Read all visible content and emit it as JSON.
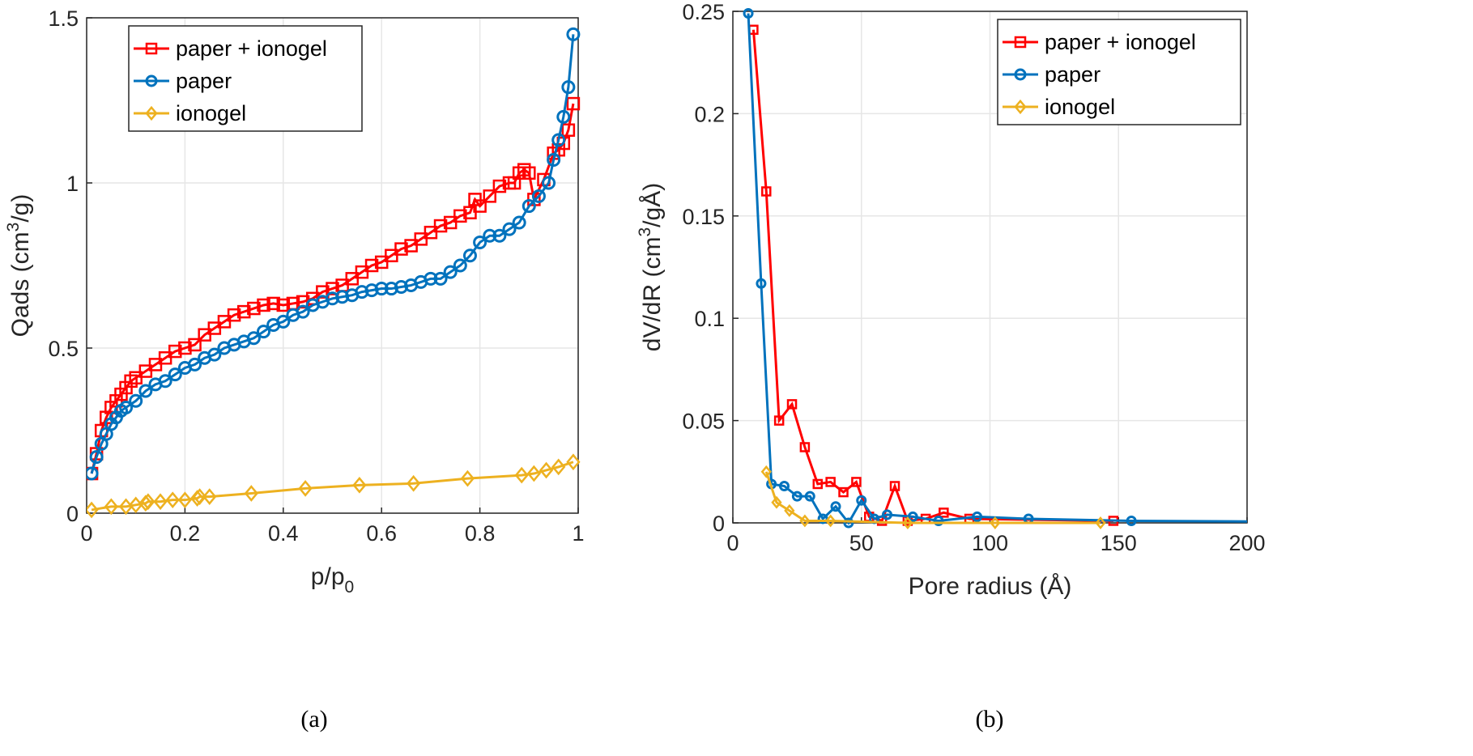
{
  "chart_data": [
    {
      "type": "line",
      "caption": "(a)",
      "xlabel": {
        "main": "p/p",
        "sub": "0"
      },
      "ylabel": {
        "pre": "Qads (cm",
        "sup": "3",
        "post": "/g)"
      },
      "xlim": [
        0,
        1
      ],
      "ylim": [
        0,
        1.5
      ],
      "xticks": [
        "0",
        "0.2",
        "0.4",
        "0.6",
        "0.8",
        "1"
      ],
      "xtick_values": [
        0,
        0.2,
        0.4,
        0.6,
        0.8,
        1
      ],
      "yticks": [
        "0",
        "0.5",
        "1",
        "1.5"
      ],
      "ytick_values": [
        0,
        0.5,
        1,
        1.5
      ],
      "grid": true,
      "legend_position": "top-left",
      "series": [
        {
          "name": "paper + ionogel",
          "color": "#FF0000",
          "marker": "square",
          "x": [
            0.01,
            0.02,
            0.03,
            0.04,
            0.05,
            0.06,
            0.07,
            0.08,
            0.09,
            0.1,
            0.12,
            0.14,
            0.16,
            0.18,
            0.2,
            0.22,
            0.24,
            0.26,
            0.28,
            0.3,
            0.32,
            0.34,
            0.36,
            0.38,
            0.4,
            0.42,
            0.44,
            0.46,
            0.48,
            0.5,
            0.52,
            0.54,
            0.56,
            0.58,
            0.6,
            0.62,
            0.64,
            0.66,
            0.68,
            0.7,
            0.72,
            0.74,
            0.76,
            0.78,
            0.79,
            0.8,
            0.82,
            0.84,
            0.86,
            0.87,
            0.88,
            0.89,
            0.9,
            0.91,
            0.93,
            0.95,
            0.96,
            0.97,
            0.98,
            0.99
          ],
          "y": [
            0.12,
            0.18,
            0.25,
            0.29,
            0.32,
            0.34,
            0.36,
            0.38,
            0.4,
            0.41,
            0.43,
            0.45,
            0.47,
            0.49,
            0.5,
            0.51,
            0.54,
            0.56,
            0.58,
            0.6,
            0.61,
            0.62,
            0.63,
            0.635,
            0.63,
            0.635,
            0.64,
            0.65,
            0.67,
            0.68,
            0.69,
            0.71,
            0.73,
            0.75,
            0.76,
            0.78,
            0.8,
            0.81,
            0.83,
            0.85,
            0.87,
            0.88,
            0.9,
            0.91,
            0.95,
            0.93,
            0.96,
            0.99,
            1.0,
            1.0,
            1.03,
            1.04,
            1.03,
            0.95,
            1.01,
            1.09,
            1.1,
            1.12,
            1.16,
            1.24
          ]
        },
        {
          "name": "paper",
          "color": "#0072BD",
          "marker": "circle",
          "x": [
            0.01,
            0.02,
            0.03,
            0.04,
            0.05,
            0.06,
            0.07,
            0.08,
            0.1,
            0.12,
            0.14,
            0.16,
            0.18,
            0.2,
            0.22,
            0.24,
            0.26,
            0.28,
            0.3,
            0.32,
            0.34,
            0.36,
            0.38,
            0.4,
            0.42,
            0.44,
            0.46,
            0.48,
            0.5,
            0.52,
            0.54,
            0.56,
            0.58,
            0.6,
            0.62,
            0.64,
            0.66,
            0.68,
            0.7,
            0.72,
            0.74,
            0.76,
            0.78,
            0.8,
            0.82,
            0.84,
            0.86,
            0.88,
            0.9,
            0.92,
            0.94,
            0.95,
            0.96,
            0.97,
            0.98,
            0.99
          ],
          "y": [
            0.12,
            0.17,
            0.21,
            0.24,
            0.27,
            0.29,
            0.31,
            0.32,
            0.34,
            0.37,
            0.39,
            0.4,
            0.42,
            0.44,
            0.45,
            0.47,
            0.48,
            0.5,
            0.51,
            0.52,
            0.53,
            0.55,
            0.57,
            0.58,
            0.6,
            0.61,
            0.63,
            0.64,
            0.65,
            0.655,
            0.66,
            0.67,
            0.675,
            0.68,
            0.68,
            0.685,
            0.69,
            0.7,
            0.71,
            0.71,
            0.73,
            0.75,
            0.78,
            0.82,
            0.84,
            0.84,
            0.86,
            0.88,
            0.93,
            0.96,
            1.0,
            1.07,
            1.13,
            1.2,
            1.29,
            1.45
          ]
        },
        {
          "name": "ionogel",
          "color": "#EDB120",
          "marker": "diamond",
          "x": [
            0.01,
            0.05,
            0.08,
            0.1,
            0.12,
            0.125,
            0.15,
            0.175,
            0.2,
            0.225,
            0.23,
            0.25,
            0.335,
            0.445,
            0.555,
            0.665,
            0.775,
            0.885,
            0.91,
            0.935,
            0.96,
            0.99
          ],
          "y": [
            0.01,
            0.02,
            0.02,
            0.025,
            0.03,
            0.035,
            0.035,
            0.04,
            0.04,
            0.045,
            0.05,
            0.05,
            0.06,
            0.075,
            0.085,
            0.09,
            0.105,
            0.115,
            0.12,
            0.13,
            0.14,
            0.155
          ]
        }
      ]
    },
    {
      "type": "line",
      "caption": "(b)",
      "xlabel": {
        "main": "Pore radius (Å)",
        "sub": ""
      },
      "ylabel": {
        "pre": "dV/dR (cm",
        "sup": "3",
        "post": "/gÅ)"
      },
      "xlim": [
        0,
        200
      ],
      "ylim": [
        0,
        0.25
      ],
      "xticks": [
        "0",
        "50",
        "100",
        "150",
        "200"
      ],
      "xtick_values": [
        0,
        50,
        100,
        150,
        200
      ],
      "yticks": [
        "0",
        "0.05",
        "0.1",
        "0.15",
        "0.2",
        "0.25"
      ],
      "ytick_values": [
        0,
        0.05,
        0.1,
        0.15,
        0.2,
        0.25
      ],
      "grid": true,
      "legend_position": "top-right",
      "series": [
        {
          "name": "paper + ionogel",
          "color": "#FF0000",
          "marker": "square",
          "x": [
            8,
            13,
            18,
            23,
            28,
            33,
            38,
            43,
            48,
            53,
            58,
            63,
            68,
            75,
            82,
            92,
            148
          ],
          "y": [
            0.241,
            0.162,
            0.05,
            0.058,
            0.037,
            0.019,
            0.02,
            0.015,
            0.02,
            0.003,
            0.001,
            0.018,
            0.001,
            0.002,
            0.005,
            0.002,
            0.001
          ]
        },
        {
          "name": "paper",
          "color": "#0072BD",
          "marker": "circle",
          "x": [
            6,
            11,
            15,
            20,
            25,
            30,
            35,
            40,
            45,
            50,
            55,
            60,
            70,
            80,
            95,
            115,
            155,
            200
          ],
          "y": [
            0.249,
            0.117,
            0.019,
            0.018,
            0.013,
            0.013,
            0.002,
            0.008,
            0.0,
            0.011,
            0.002,
            0.004,
            0.003,
            0.001,
            0.003,
            0.002,
            0.001,
            0.0007
          ]
        },
        {
          "name": "ionogel",
          "color": "#EDB120",
          "marker": "diamond",
          "x": [
            13,
            17,
            22,
            28,
            38,
            68,
            102,
            143
          ],
          "y": [
            0.025,
            0.01,
            0.006,
            0.001,
            0.001,
            0.0,
            0.0,
            0.0
          ]
        }
      ]
    }
  ]
}
